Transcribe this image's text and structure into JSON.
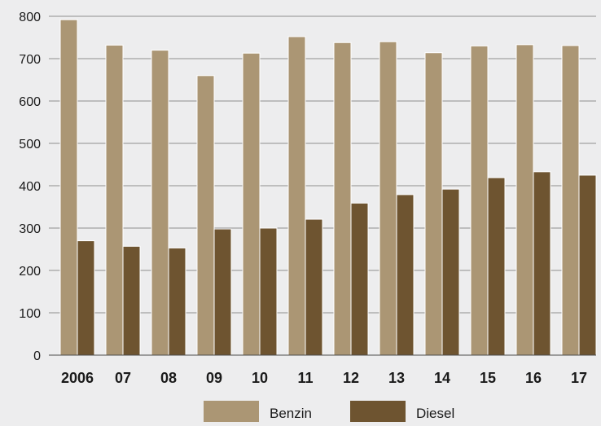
{
  "chart_data": {
    "type": "bar",
    "categories": [
      "2006",
      "07",
      "08",
      "09",
      "10",
      "11",
      "12",
      "13",
      "14",
      "15",
      "16",
      "17"
    ],
    "series": [
      {
        "name": "Benzin",
        "color": "#ab9674",
        "values": [
          792,
          732,
          720,
          660,
          713,
          752,
          738,
          740,
          714,
          730,
          733,
          731
        ]
      },
      {
        "name": "Diesel",
        "color": "#6e5430",
        "values": [
          270,
          257,
          253,
          298,
          300,
          321,
          359,
          379,
          392,
          419,
          433,
          425
        ]
      }
    ],
    "ylim": [
      0,
      800
    ],
    "yticks": [
      "0",
      "100",
      "200",
      "300",
      "400",
      "500",
      "600",
      "700",
      "800"
    ],
    "grid": true,
    "legend": "bottom-center",
    "title": "",
    "xlabel": "",
    "ylabel": ""
  },
  "colors": {
    "background": "#ededee",
    "grid": "#8f8f8f",
    "text": "#1a1a1a"
  }
}
